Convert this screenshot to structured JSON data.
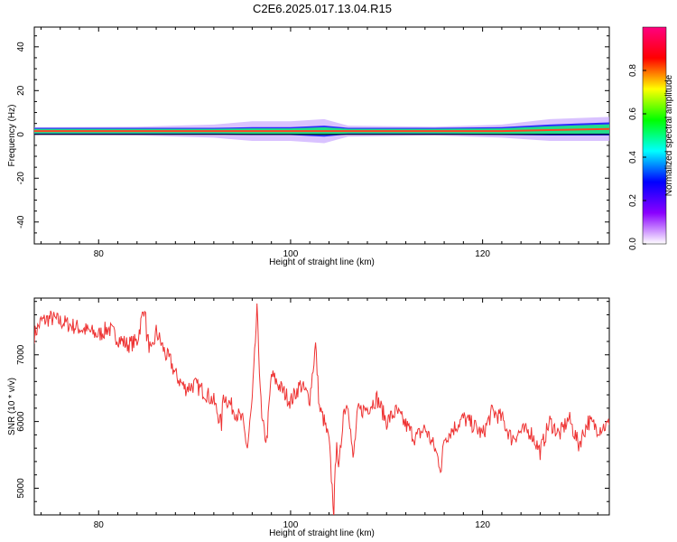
{
  "title": "C2E6.2025.017.13.04.R15",
  "chart_data": [
    {
      "type": "heatmap",
      "title": "C2E6.2025.017.13.04.R15",
      "xlabel": "Height of straight line (km)",
      "ylabel": "Frequency (Hz)",
      "xlim": [
        73.3,
        133.2
      ],
      "ylim": [
        -50,
        49
      ],
      "xticks": [
        80,
        100,
        120
      ],
      "yticks": [
        40,
        20,
        0,
        -20,
        -40
      ],
      "grid": false,
      "data_extent_x": [
        73.3,
        133.2
      ],
      "band": [
        {
          "x": 73.3,
          "center_hz": 1.5,
          "core_halfwidth_hz": 1.5,
          "halo_halfwidth_hz": 1.8
        },
        {
          "x": 84,
          "center_hz": 1.5,
          "core_halfwidth_hz": 1.5,
          "halo_halfwidth_hz": 2.0
        },
        {
          "x": 92,
          "center_hz": 1.5,
          "core_halfwidth_hz": 1.5,
          "halo_halfwidth_hz": 3.0
        },
        {
          "x": 96,
          "center_hz": 1.5,
          "core_halfwidth_hz": 1.8,
          "halo_halfwidth_hz": 4.5
        },
        {
          "x": 100,
          "center_hz": 1.5,
          "core_halfwidth_hz": 1.8,
          "halo_halfwidth_hz": 4.5
        },
        {
          "x": 103.5,
          "center_hz": 1.5,
          "core_halfwidth_hz": 2.5,
          "halo_halfwidth_hz": 5.5
        },
        {
          "x": 106,
          "center_hz": 1.5,
          "core_halfwidth_hz": 1.5,
          "halo_halfwidth_hz": 2.5
        },
        {
          "x": 115,
          "center_hz": 1.5,
          "core_halfwidth_hz": 1.5,
          "halo_halfwidth_hz": 2.0
        },
        {
          "x": 122,
          "center_hz": 1.5,
          "core_halfwidth_hz": 1.8,
          "halo_halfwidth_hz": 3.0
        },
        {
          "x": 127,
          "center_hz": 2.0,
          "core_halfwidth_hz": 2.5,
          "halo_halfwidth_hz": 5.0
        },
        {
          "x": 133.2,
          "center_hz": 2.5,
          "core_halfwidth_hz": 3.0,
          "halo_halfwidth_hz": 5.5
        }
      ],
      "colorbar": {
        "label": "Normalized spectral amplitude",
        "range": [
          0,
          1
        ],
        "ticks": [
          "0.0",
          "0.2",
          "0.4",
          "0.6",
          "0.8"
        ],
        "colormap": "rainbow",
        "colors": [
          "#ffffff",
          "#8a00ff",
          "#0000ff",
          "#00ffff",
          "#00ff00",
          "#ffff00",
          "#ff0000",
          "#ff0080"
        ]
      }
    },
    {
      "type": "line",
      "xlabel": "Height of straight line (km)",
      "ylabel": "SNR (10 * v/v)",
      "xlim": [
        73.3,
        133.2
      ],
      "ylim": [
        4600,
        7850
      ],
      "xticks": [
        80,
        100,
        120
      ],
      "yticks": [
        7000,
        6000,
        5000
      ],
      "grid": false,
      "line_color": "#ee3333",
      "series": [
        {
          "x": [
            73.3,
            74,
            75,
            76,
            77,
            78,
            79,
            80,
            81,
            82,
            83,
            84,
            84.8,
            85,
            85.5,
            86,
            87,
            87.5,
            88,
            89,
            90,
            91,
            92,
            92.8,
            93,
            94,
            95,
            95.5,
            96,
            96.5,
            97,
            97.5,
            98,
            99,
            100,
            101,
            102,
            102.6,
            103,
            103.5,
            104,
            104.5,
            104.8,
            105,
            105.5,
            106,
            106.5,
            107,
            108,
            109,
            110,
            111,
            112,
            113,
            114,
            115,
            115.7,
            116,
            117,
            118,
            119,
            120,
            121,
            122,
            123,
            124,
            125,
            126,
            127,
            128,
            129,
            130,
            131,
            132,
            133.2
          ],
          "y": [
            7300,
            7500,
            7550,
            7500,
            7450,
            7400,
            7350,
            7300,
            7400,
            7250,
            7150,
            7200,
            7750,
            7300,
            7000,
            7350,
            7000,
            6900,
            6700,
            6500,
            6550,
            6450,
            6300,
            5950,
            6400,
            6200,
            6000,
            5600,
            6300,
            7650,
            6000,
            5700,
            6700,
            6500,
            6300,
            6550,
            6350,
            7150,
            6200,
            6000,
            5700,
            4650,
            5800,
            5200,
            6150,
            6300,
            5400,
            6150,
            6200,
            6350,
            6000,
            6150,
            5950,
            5750,
            5900,
            5600,
            5300,
            5750,
            5900,
            6050,
            5950,
            5800,
            6150,
            6050,
            5750,
            5850,
            5850,
            5550,
            6000,
            5800,
            6050,
            5650,
            6000,
            5900,
            5950
          ]
        }
      ]
    }
  ]
}
